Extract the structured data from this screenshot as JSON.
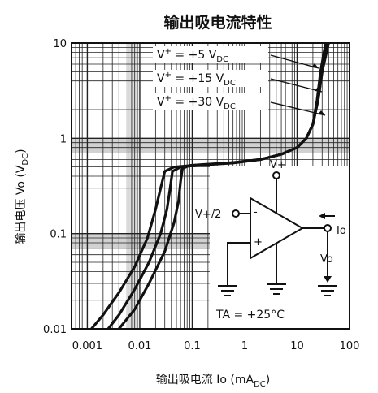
{
  "chart_data": {
    "type": "line",
    "title": "输出吸电流特性",
    "xlabel": "输出吸电流 Io (mA_DC)",
    "ylabel": "输出电压 Vo (V_DC)",
    "xscale": "log",
    "yscale": "log",
    "xlim": [
      0.0005,
      100
    ],
    "ylim": [
      0.01,
      10
    ],
    "x_ticks": [
      "0.001",
      "0.01",
      "0.1",
      "1",
      "10",
      "100"
    ],
    "x_tick_values": [
      0.001,
      0.01,
      0.1,
      1,
      10,
      100
    ],
    "y_ticks": [
      "10",
      "1",
      "0.1",
      "0.01"
    ],
    "y_tick_values": [
      10,
      1,
      0.1,
      0.01
    ],
    "grid": true,
    "series": [
      {
        "name": "V+ = +5 VDC",
        "x": [
          0.0012,
          0.002,
          0.004,
          0.008,
          0.014,
          0.02,
          0.025,
          0.03,
          0.045,
          0.1,
          0.5,
          2,
          5,
          10,
          15,
          20,
          25,
          30,
          40
        ],
        "y": [
          0.01,
          0.014,
          0.024,
          0.045,
          0.09,
          0.18,
          0.3,
          0.45,
          0.5,
          0.52,
          0.55,
          0.6,
          0.68,
          0.8,
          1.0,
          1.4,
          2.5,
          5,
          10
        ]
      },
      {
        "name": "V+ = +15 VDC",
        "x": [
          0.0025,
          0.004,
          0.008,
          0.015,
          0.025,
          0.033,
          0.038,
          0.042,
          0.06,
          0.12,
          0.6,
          2,
          5,
          10,
          15,
          20,
          25,
          30,
          38
        ],
        "y": [
          0.01,
          0.014,
          0.026,
          0.05,
          0.1,
          0.18,
          0.3,
          0.45,
          0.5,
          0.52,
          0.55,
          0.6,
          0.68,
          0.8,
          1.0,
          1.4,
          2.5,
          5,
          10
        ]
      },
      {
        "name": "V+ = +30 VDC",
        "x": [
          0.004,
          0.008,
          0.015,
          0.03,
          0.045,
          0.055,
          0.06,
          0.065,
          0.09,
          0.15,
          0.7,
          2,
          5,
          10,
          15,
          20,
          24,
          28,
          35
        ],
        "y": [
          0.01,
          0.016,
          0.03,
          0.065,
          0.13,
          0.22,
          0.35,
          0.48,
          0.52,
          0.53,
          0.56,
          0.6,
          0.68,
          0.8,
          1.0,
          1.4,
          2.5,
          5,
          10
        ]
      }
    ],
    "legend": [
      {
        "v": "V",
        "sup": "+",
        "eq": "= +5 V",
        "sub": "DC"
      },
      {
        "v": "V",
        "sup": "+",
        "eq": "= +15 V",
        "sub": "DC"
      },
      {
        "v": "V",
        "sup": "+",
        "eq": "= +30 V",
        "sub": "DC"
      }
    ],
    "legend_position": "top-right",
    "inset": {
      "supply": "V+",
      "half_supply": "V+/2",
      "minus_sign": "-",
      "plus_sign": "+",
      "output_current": "Io",
      "output_voltage": "Vo",
      "temp_label": "TA = +25°C"
    }
  },
  "colors": {
    "line": "#111111",
    "grid": "#222222",
    "shading": "#9a9a9a",
    "background": "#ffffff"
  }
}
